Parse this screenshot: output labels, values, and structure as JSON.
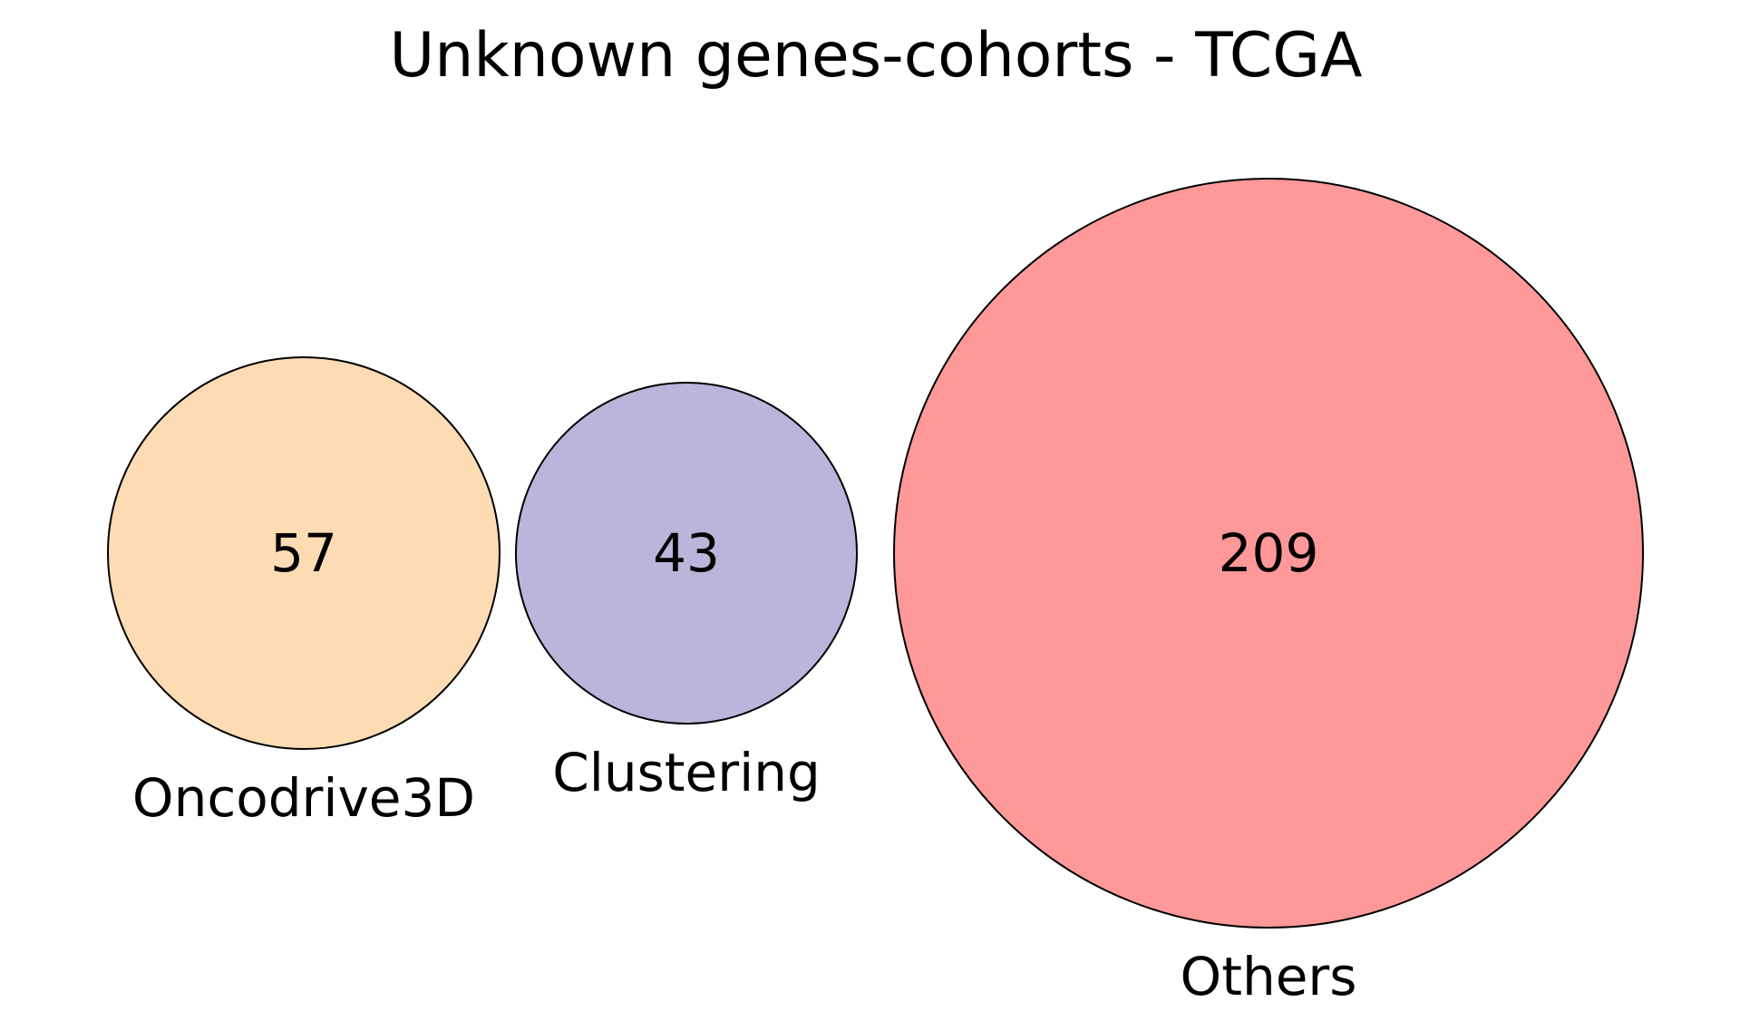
{
  "title": "Unknown genes-cohorts - TCGA",
  "sets": [
    {
      "id": "oncodrive3d",
      "label": "Oncodrive3D",
      "count": "57",
      "color": "#FDDCB4"
    },
    {
      "id": "clustering",
      "label": "Clustering",
      "count": "43",
      "color": "#BAB5DA"
    },
    {
      "id": "others",
      "label": "Others",
      "count": "209",
      "color": "#FE9899"
    }
  ]
}
